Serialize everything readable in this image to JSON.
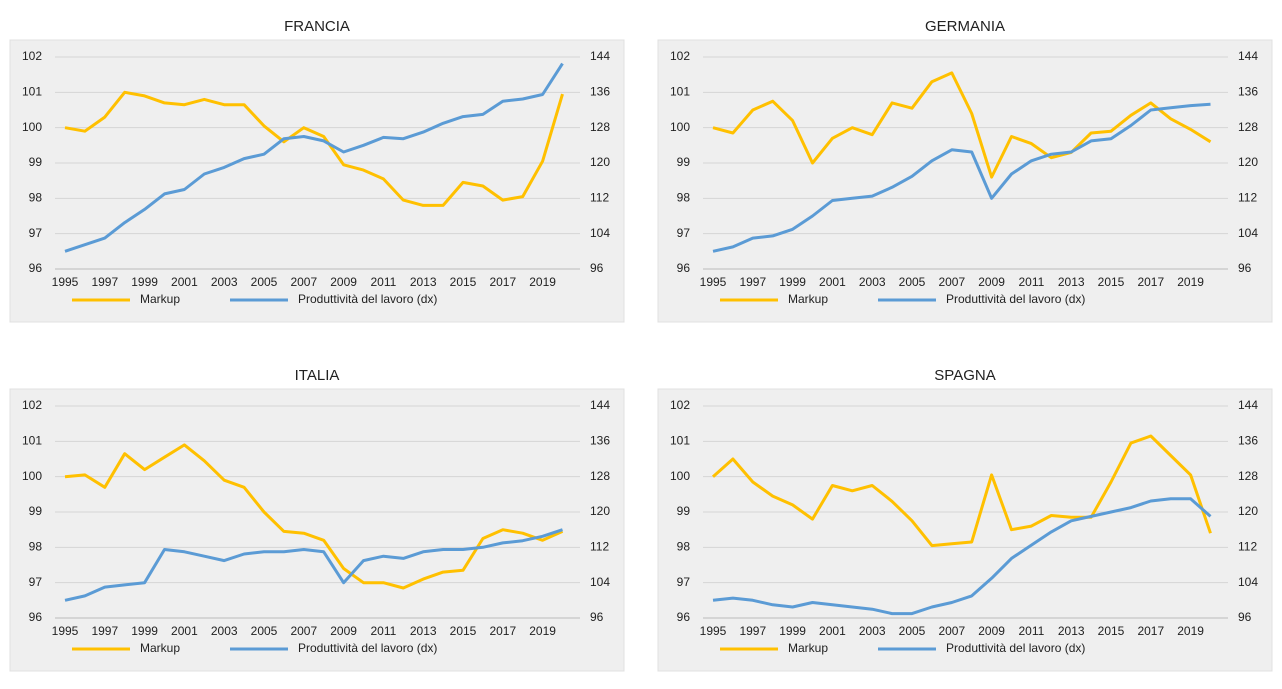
{
  "chart_data": [
    {
      "type": "line",
      "title": "FRANCIA",
      "categories": [
        "1995",
        null,
        "1997",
        null,
        "1999",
        null,
        "2001",
        null,
        "2003",
        null,
        "2005",
        null,
        "2007",
        null,
        "2009",
        null,
        "2011",
        null,
        "2013",
        null,
        "2015",
        null,
        "2017",
        null,
        "2019",
        null
      ],
      "series": [
        {
          "name": "Markup",
          "color": "#FFC000",
          "values": [
            100,
            99.9,
            100.3,
            101.0,
            100.9,
            100.7,
            100.65,
            100.8,
            100.65,
            100.65,
            100.05,
            99.6,
            100.0,
            99.75,
            98.95,
            98.8,
            98.55,
            97.95,
            97.8,
            97.8,
            98.45,
            98.35,
            97.95,
            98.05,
            99.05,
            100.95
          ]
        },
        {
          "name": "Produttività del lavoro (dx)",
          "color": "#5B9BD5",
          "axis": "y2",
          "values": [
            100,
            101.5,
            103,
            106.5,
            109.5,
            113,
            114,
            117.5,
            119,
            121,
            122,
            125.5,
            126,
            125,
            122.5,
            124,
            125.8,
            125.5,
            127,
            129,
            130.5,
            131,
            134,
            134.5,
            135.5,
            142.5
          ]
        }
      ],
      "ylim": [
        96,
        102
      ],
      "yticks": [
        96,
        97,
        98,
        99,
        100,
        101,
        102
      ],
      "y2lim": [
        96,
        144
      ],
      "y2ticks": [
        96,
        104,
        112,
        120,
        128,
        136,
        144
      ],
      "grid": true
    },
    {
      "type": "line",
      "title": "GERMANIA",
      "categories": [
        "1995",
        null,
        "1997",
        null,
        "1999",
        null,
        "2001",
        null,
        "2003",
        null,
        "2005",
        null,
        "2007",
        null,
        "2009",
        null,
        "2011",
        null,
        "2013",
        null,
        "2015",
        null,
        "2017",
        null,
        "2019",
        null
      ],
      "series": [
        {
          "name": "Markup",
          "color": "#FFC000",
          "values": [
            100,
            99.85,
            100.5,
            100.75,
            100.2,
            99.0,
            99.7,
            100.0,
            99.8,
            100.7,
            100.55,
            101.3,
            101.55,
            100.4,
            98.6,
            99.75,
            99.55,
            99.15,
            99.3,
            99.85,
            99.9,
            100.35,
            100.7,
            100.25,
            99.95,
            99.6
          ]
        },
        {
          "name": "Produttività del lavoro (dx)",
          "color": "#5B9BD5",
          "axis": "y2",
          "values": [
            100,
            101,
            103,
            103.5,
            105,
            108,
            111.5,
            112,
            112.5,
            114.5,
            117,
            120.5,
            123,
            122.5,
            112,
            117.5,
            120.5,
            122,
            122.5,
            125,
            125.5,
            128.5,
            132,
            132.5,
            133,
            133.3
          ]
        }
      ],
      "ylim": [
        96,
        102
      ],
      "yticks": [
        96,
        97,
        98,
        99,
        100,
        101,
        102
      ],
      "y2lim": [
        96,
        144
      ],
      "y2ticks": [
        96,
        104,
        112,
        120,
        128,
        136,
        144
      ],
      "grid": true
    },
    {
      "type": "line",
      "title": "ITALIA",
      "categories": [
        "1995",
        null,
        "1997",
        null,
        "1999",
        null,
        "2001",
        null,
        "2003",
        null,
        "2005",
        null,
        "2007",
        null,
        "2009",
        null,
        "2011",
        null,
        "2013",
        null,
        "2015",
        null,
        "2017",
        null,
        "2019",
        null
      ],
      "series": [
        {
          "name": "Markup",
          "color": "#FFC000",
          "values": [
            100,
            100.05,
            99.7,
            100.65,
            100.2,
            100.55,
            100.9,
            100.45,
            99.9,
            99.7,
            99.0,
            98.45,
            98.4,
            98.2,
            97.4,
            97.0,
            97.0,
            96.85,
            97.1,
            97.3,
            97.35,
            98.25,
            98.5,
            98.4,
            98.2,
            98.45
          ]
        },
        {
          "name": "Produttività del lavoro (dx)",
          "color": "#5B9BD5",
          "axis": "y2",
          "values": [
            100,
            101,
            103,
            103.5,
            104,
            111.5,
            111,
            110,
            109,
            110.5,
            111,
            111,
            111.5,
            111,
            104,
            109,
            110,
            109.5,
            111,
            111.5,
            111.5,
            112,
            113,
            113.5,
            114.5,
            116
          ]
        }
      ],
      "ylim": [
        96,
        102
      ],
      "yticks": [
        96,
        97,
        98,
        99,
        100,
        101,
        102
      ],
      "y2lim": [
        96,
        144
      ],
      "y2ticks": [
        96,
        104,
        112,
        120,
        128,
        136,
        144
      ],
      "grid": true
    },
    {
      "type": "line",
      "title": "SPAGNA",
      "categories": [
        "1995",
        null,
        "1997",
        null,
        "1999",
        null,
        "2001",
        null,
        "2003",
        null,
        "2005",
        null,
        "2007",
        null,
        "2009",
        null,
        "2011",
        null,
        "2013",
        null,
        "2015",
        null,
        "2017",
        null,
        "2019",
        null
      ],
      "series": [
        {
          "name": "Markup",
          "color": "#FFC000",
          "values": [
            100,
            100.5,
            99.85,
            99.45,
            99.2,
            98.8,
            99.75,
            99.6,
            99.75,
            99.3,
            98.75,
            98.05,
            98.1,
            98.15,
            100.05,
            98.5,
            98.6,
            98.9,
            98.85,
            98.85,
            99.85,
            100.95,
            101.15,
            100.6,
            100.05,
            98.4
          ]
        },
        {
          "name": "Produttività del lavoro (dx)",
          "color": "#5B9BD5",
          "axis": "y2",
          "values": [
            100,
            100.5,
            100,
            99,
            98.5,
            99.5,
            99,
            98.5,
            98,
            97,
            97,
            98.5,
            99.5,
            101,
            105,
            109.5,
            112.5,
            115.5,
            118,
            119,
            120,
            121,
            122.5,
            123,
            123,
            119
          ]
        }
      ],
      "ylim": [
        96,
        102
      ],
      "yticks": [
        96,
        97,
        98,
        99,
        100,
        101,
        102
      ],
      "y2lim": [
        96,
        144
      ],
      "y2ticks": [
        96,
        104,
        112,
        120,
        128,
        136,
        144
      ],
      "grid": true
    }
  ]
}
